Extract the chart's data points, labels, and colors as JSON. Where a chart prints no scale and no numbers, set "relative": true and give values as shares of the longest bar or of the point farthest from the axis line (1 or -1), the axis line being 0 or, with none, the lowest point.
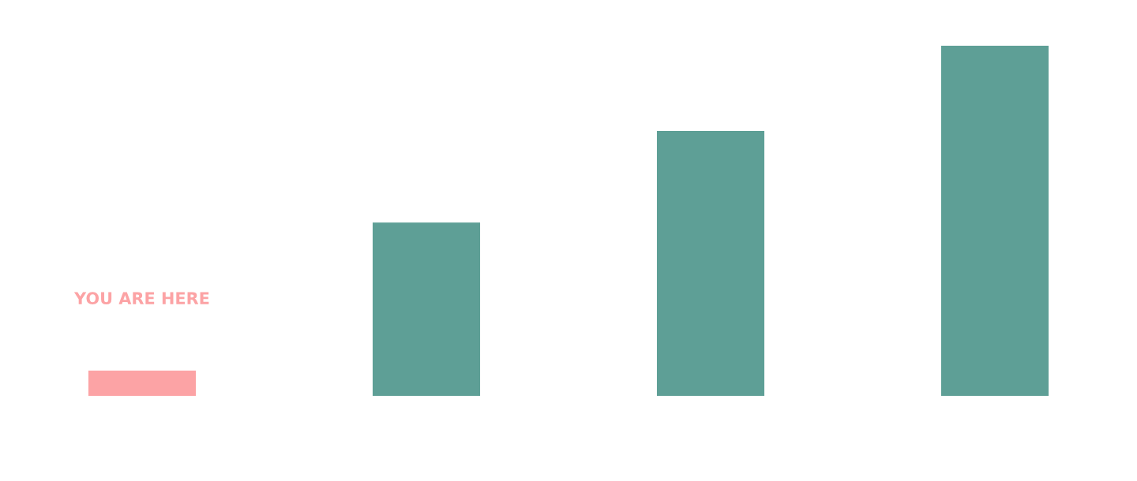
{
  "chart_data": {
    "type": "bar",
    "relative": true,
    "categories": [
      null,
      null,
      null,
      null
    ],
    "values": [
      0.072,
      0.495,
      0.757,
      1
    ],
    "colors": [
      "#fca3a5",
      "#5e9f96",
      "#5e9f96",
      "#5e9f96"
    ],
    "annotations": [
      "YOU ARE HERE"
    ],
    "grid": false,
    "legend": false
  }
}
